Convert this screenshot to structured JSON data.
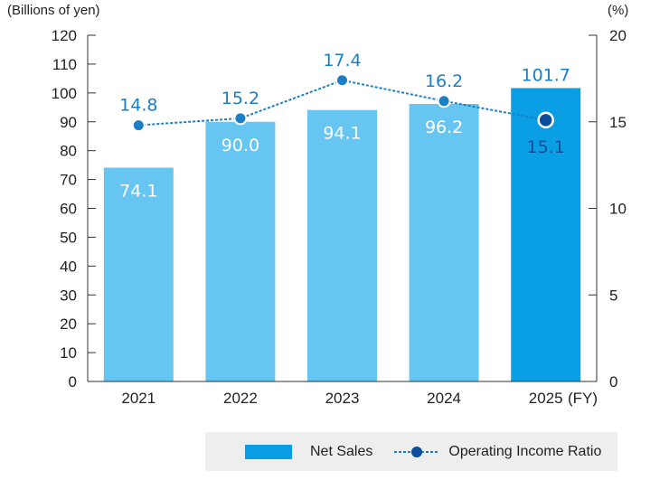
{
  "chart_data": {
    "type": "bar",
    "categories": [
      "2021",
      "2022",
      "2023",
      "2024",
      "2025"
    ],
    "x_unit": "(FY)",
    "series": [
      {
        "name": "Net Sales",
        "type": "bar",
        "axis": "left",
        "values": [
          74.1,
          90.0,
          94.1,
          96.2,
          101.7
        ],
        "labels": [
          "74.1",
          "90.0",
          "94.1",
          "96.2",
          "101.7"
        ]
      },
      {
        "name": "Operating Income Ratio",
        "type": "line",
        "axis": "right",
        "values": [
          14.8,
          15.2,
          17.4,
          16.2,
          15.1
        ],
        "labels": [
          "14.8",
          "15.2",
          "17.4",
          "16.2",
          "15.1"
        ]
      }
    ],
    "y_left": {
      "label": "(Billions of yen)",
      "ylim": [
        0,
        120
      ],
      "ticks": [
        "0",
        "10",
        "20",
        "30",
        "40",
        "50",
        "60",
        "70",
        "80",
        "90",
        "100",
        "110",
        "120"
      ]
    },
    "y_right": {
      "label": "(%)",
      "ylim": [
        0,
        20
      ],
      "ticks": [
        "0",
        "5",
        "10",
        "15",
        "20"
      ]
    },
    "grid": false,
    "legend_position": "bottom",
    "highlighted_category": "2025",
    "colors": {
      "bar": "#66c5f1",
      "bar_highlight": "#0a9fe4",
      "line": "#1a7fc4",
      "marker": "#1a7fc4",
      "marker_highlight": "#0b4f9c",
      "bar_label": "#ffffff",
      "axis": "#333333"
    }
  },
  "legend": {
    "net_sales": "Net Sales",
    "operating_income_ratio": "Operating Income Ratio"
  }
}
